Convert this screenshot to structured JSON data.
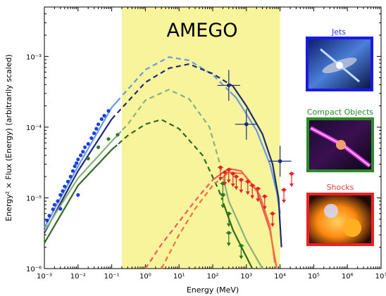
{
  "chart_data": {
    "type": "line",
    "xscale": "log",
    "yscale": "log",
    "xlim": [
      0.001,
      10000000
    ],
    "ylim": [
      1e-06,
      0.005
    ],
    "xlabel": "Energy (MeV)",
    "ylabel": "Energy² × Flux (Energy) (arbitrarily scaled)",
    "x_tick_labels": [
      "10⁻³",
      "10⁻²",
      "10⁻¹",
      "10⁰",
      "10¹",
      "10²",
      "10³",
      "10⁴",
      "10⁵",
      "10⁶",
      "10⁷"
    ],
    "y_tick_labels": [
      "10⁻⁶",
      "10⁻⁵",
      "10⁻⁴",
      "10⁻³"
    ],
    "grid": false,
    "band": {
      "label": "AMEGO",
      "x_range": [
        0.2,
        10000
      ],
      "color": "#f7f49b"
    },
    "series": [
      {
        "group": "Jets",
        "role": "model",
        "color": "#6a9ae2",
        "dash_range": [
          0.2,
          300
        ],
        "points": [
          [
            0.001,
            3.8e-06
          ],
          [
            0.01,
            2.8e-05
          ],
          [
            0.1,
            0.00019
          ],
          [
            1,
            0.00065
          ],
          [
            5,
            0.00098
          ],
          [
            20,
            0.00088
          ],
          [
            100,
            0.00055
          ],
          [
            500,
            0.00026
          ],
          [
            2000,
            9e-05
          ],
          [
            5000,
            3e-05
          ],
          [
            8000,
            1.2e-05
          ],
          [
            10000,
            6e-06
          ]
        ]
      },
      {
        "group": "Jets",
        "role": "model",
        "color": "#1e2a7a",
        "dash_range": [
          0.1,
          300
        ],
        "points": [
          [
            0.001,
            3.2e-06
          ],
          [
            0.01,
            2.4e-05
          ],
          [
            0.1,
            0.00013
          ],
          [
            1,
            0.00043
          ],
          [
            5,
            0.00068
          ],
          [
            20,
            0.00078
          ],
          [
            100,
            0.00057
          ],
          [
            400,
            0.00038
          ],
          [
            1000,
            0.0002
          ],
          [
            3000,
            8e-05
          ],
          [
            6000,
            3e-05
          ],
          [
            9000,
            1e-05
          ],
          [
            11000,
            2e-06
          ]
        ]
      },
      {
        "group": "Compact Objects",
        "role": "model",
        "color": "#8ab07a",
        "dash_range": [
          0.2,
          200
        ],
        "points": [
          [
            0.001,
            3.4e-06
          ],
          [
            0.01,
            1.9e-05
          ],
          [
            0.1,
            6.3e-05
          ],
          [
            0.3,
            0.00011
          ],
          [
            1,
            0.00024
          ],
          [
            5,
            0.00034
          ],
          [
            20,
            0.00025
          ],
          [
            80,
            0.0001
          ],
          [
            150,
            3.5e-05
          ],
          [
            300,
            9e-06
          ],
          [
            1000,
            2.5e-06
          ],
          [
            3000,
            1e-06
          ]
        ]
      },
      {
        "group": "Compact Objects",
        "role": "model",
        "color": "#2e6b21",
        "dash_range": [
          0.15,
          200
        ],
        "points": [
          [
            0.001,
            2.3e-06
          ],
          [
            0.01,
            1.5e-05
          ],
          [
            0.1,
            4.8e-05
          ],
          [
            0.3,
            7.6e-05
          ],
          [
            1,
            0.00011
          ],
          [
            3,
            0.000128
          ],
          [
            10,
            9.5e-05
          ],
          [
            50,
            4e-05
          ],
          [
            150,
            1.3e-05
          ],
          [
            400,
            3.5e-06
          ],
          [
            1500,
            1e-06
          ]
        ]
      },
      {
        "group": "Shocks",
        "role": "model",
        "color": "#f05a5a",
        "dash_range": [
          1,
          100
        ],
        "points": [
          [
            1,
            1e-06
          ],
          [
            3,
            2.2e-06
          ],
          [
            10,
            4.6e-06
          ],
          [
            30,
            9.1e-06
          ],
          [
            100,
            1.8e-05
          ],
          [
            300,
            2.6e-05
          ],
          [
            700,
            2.4e-05
          ],
          [
            2000,
            1.3e-05
          ],
          [
            5000,
            3.5e-06
          ],
          [
            8000,
            1e-06
          ]
        ]
      },
      {
        "group": "Shocks",
        "role": "model",
        "color": "#f47040",
        "dash_range": [
          3,
          150
        ],
        "points": [
          [
            3,
            1e-06
          ],
          [
            10,
            3e-06
          ],
          [
            30,
            7e-06
          ],
          [
            100,
            1.5e-05
          ],
          [
            300,
            2.3e-05
          ],
          [
            800,
            2.2e-05
          ],
          [
            2500,
            1.1e-05
          ],
          [
            5000,
            4e-06
          ],
          [
            7000,
            1.2e-06
          ]
        ]
      },
      {
        "group": "Jets",
        "role": "data",
        "color": "#1a3fe0",
        "points": [
          [
            0.0012,
            4.8e-06
          ],
          [
            0.0014,
            5.6e-06
          ],
          [
            0.0018,
            6.9e-06
          ],
          [
            0.002,
            8e-06
          ],
          [
            0.0025,
            9e-06
          ],
          [
            0.003,
            1.1e-05
          ],
          [
            0.0035,
            1.25e-05
          ],
          [
            0.004,
            1.45e-05
          ],
          [
            0.005,
            1.7e-05
          ],
          [
            0.006,
            2e-05
          ],
          [
            0.007,
            2.4e-05
          ],
          [
            0.008,
            2.8e-05
          ],
          [
            0.009,
            3.1e-05
          ],
          [
            0.01,
            3.5e-05
          ],
          [
            0.012,
            4e-05
          ],
          [
            0.014,
            4.5e-05
          ],
          [
            0.016,
            5.2e-05
          ],
          [
            0.02,
            5.8e-05
          ],
          [
            0.025,
            7e-05
          ],
          [
            0.03,
            8.2e-05
          ],
          [
            0.035,
            9.5e-05
          ],
          [
            0.04,
            0.00011
          ],
          [
            0.05,
            0.00013
          ],
          [
            0.06,
            0.000145
          ],
          [
            0.08,
            0.00017
          ],
          [
            0.01,
            1.1e-05
          ],
          [
            0.003,
            7e-06
          ]
        ],
        "errorbars": [
          [
            300,
            0.00039
          ],
          [
            1000,
            0.00011
          ],
          [
            10000,
            3.3e-05
          ]
        ]
      },
      {
        "group": "Compact Objects",
        "role": "data",
        "color": "#2e7a1e",
        "points": [
          [
            0.02,
            3.6e-05
          ],
          [
            0.04,
            5.2e-05
          ],
          [
            0.08,
            6.8e-05
          ],
          [
            0.15,
            7.8e-05
          ],
          [
            200,
            1.6e-05
          ],
          [
            200,
            1.1e-05
          ],
          [
            300,
            6e-06
          ],
          [
            300,
            3.2e-06
          ],
          [
            700,
            2.1e-06
          ]
        ]
      },
      {
        "group": "Shocks",
        "role": "data",
        "color": "#e0242a",
        "points": [
          [
            170,
            2.7e-05
          ],
          [
            230,
            2.3e-05
          ],
          [
            300,
            2.5e-05
          ],
          [
            400,
            2.2e-05
          ],
          [
            500,
            2e-05
          ],
          [
            700,
            1.8e-05
          ],
          [
            1100,
            1.7e-05
          ],
          [
            1500,
            1.5e-05
          ],
          [
            2200,
            1.35e-05
          ],
          [
            3500,
            1.05e-05
          ],
          [
            6000,
            6e-06
          ],
          [
            13000,
            1.3e-05
          ],
          [
            22000,
            2.2e-05
          ]
        ]
      }
    ],
    "legend_panels": [
      {
        "label": "Jets",
        "label_color": "#2a3ee6",
        "border_color": "#1a1ae0",
        "icon": "agn-jet-image"
      },
      {
        "label": "Compact Objects",
        "label_color": "#2a8a2a",
        "border_color": "#2a8a2a",
        "icon": "compact-object-image"
      },
      {
        "label": "Shocks",
        "label_color": "#f03c3c",
        "border_color": "#f02020",
        "icon": "shock-image"
      }
    ]
  }
}
